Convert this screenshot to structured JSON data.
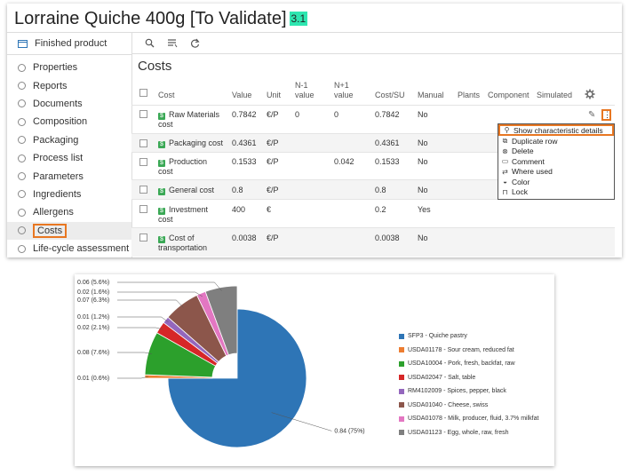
{
  "page_title": "Lorraine Quiche 400g [To Validate]",
  "version": "3.1",
  "sidebar": {
    "header": "Finished product",
    "items": [
      {
        "label": "Properties"
      },
      {
        "label": "Reports"
      },
      {
        "label": "Documents"
      },
      {
        "label": "Composition"
      },
      {
        "label": "Packaging"
      },
      {
        "label": "Process list"
      },
      {
        "label": "Parameters"
      },
      {
        "label": "Ingredients"
      },
      {
        "label": "Allergens"
      },
      {
        "label": "Costs"
      },
      {
        "label": "Life-cycle assessment"
      }
    ]
  },
  "section_title": "Costs",
  "columns": {
    "cost": "Cost",
    "value": "Value",
    "unit": "Unit",
    "n_minus_1": "N-1\nvalue",
    "n_plus_1": "N+1\nvalue",
    "cost_su": "Cost/SU",
    "manual": "Manual",
    "plants": "Plants",
    "component": "Component",
    "simulated": "Simulated"
  },
  "rows": [
    {
      "cost": "Raw Materials cost",
      "value": "0.7842",
      "unit": "€/P",
      "n_minus_1": "0",
      "n_plus_1": "0",
      "cost_su": "0.7842",
      "manual": "No"
    },
    {
      "cost": "Packaging cost",
      "value": "0.4361",
      "unit": "€/P",
      "n_minus_1": "",
      "n_plus_1": "",
      "cost_su": "0.4361",
      "manual": "No"
    },
    {
      "cost": "Production cost",
      "value": "0.1533",
      "unit": "€/P",
      "n_minus_1": "",
      "n_plus_1": "0.042",
      "cost_su": "0.1533",
      "manual": "No"
    },
    {
      "cost": "General cost",
      "value": "0.8",
      "unit": "€/P",
      "n_minus_1": "",
      "n_plus_1": "",
      "cost_su": "0.8",
      "manual": "No"
    },
    {
      "cost": "Investment cost",
      "value": "400",
      "unit": "€",
      "n_minus_1": "",
      "n_plus_1": "",
      "cost_su": "0.2",
      "manual": "Yes"
    },
    {
      "cost": "Cost of transportation",
      "value": "0.0038",
      "unit": "€/P",
      "n_minus_1": "",
      "n_plus_1": "",
      "cost_su": "0.0038",
      "manual": "No"
    }
  ],
  "context_menu": [
    {
      "label": "Show characteristic details",
      "icon": "magnifier-icon"
    },
    {
      "label": "Duplicate row",
      "icon": "duplicate-icon"
    },
    {
      "label": "Delete",
      "icon": "delete-icon"
    },
    {
      "label": "Comment",
      "icon": "comment-icon"
    },
    {
      "label": "Where used",
      "icon": "where-used-icon"
    },
    {
      "label": "Color",
      "icon": "palette-icon"
    },
    {
      "label": "Lock",
      "icon": "lock-icon"
    }
  ],
  "chart_data": {
    "type": "pie",
    "slices": [
      {
        "name": "SFP3 - Quiche pastry",
        "value": 0.84,
        "label": "0.84 (75%)",
        "color": "#2e75b6"
      },
      {
        "name": "USDA01178 - Sour cream, reduced fat",
        "value": 0.01,
        "label": "0.01 (0.6%)",
        "color": "#ed7d31"
      },
      {
        "name": "USDA10004 - Pork, fresh, backfat, raw",
        "value": 0.08,
        "label": "0.08 (7.6%)",
        "color": "#2ca02c"
      },
      {
        "name": "USDA02047 - Salt, table",
        "value": 0.02,
        "label": "0.02 (2.1%)",
        "color": "#d62728"
      },
      {
        "name": "RM4102009 - Spices, pepper, black",
        "value": 0.01,
        "label": "0.01 (1.2%)",
        "color": "#9467bd"
      },
      {
        "name": "USDA01040 - Cheese, swiss",
        "value": 0.07,
        "label": "0.07 (6.3%)",
        "color": "#8c564b"
      },
      {
        "name": "USDA01078 - Milk, producer, fluid, 3.7% milkfat",
        "value": 0.02,
        "label": "0.02 (1.6%)",
        "color": "#e377c2"
      },
      {
        "name": "USDA01123 - Egg, whole, raw, fresh",
        "value": 0.06,
        "label": "0.06 (5.6%)",
        "color": "#7f7f7f"
      }
    ],
    "percentages": [
      75,
      0.6,
      7.6,
      2.1,
      1.2,
      6.3,
      1.6,
      5.6
    ],
    "legend_position": "right"
  }
}
